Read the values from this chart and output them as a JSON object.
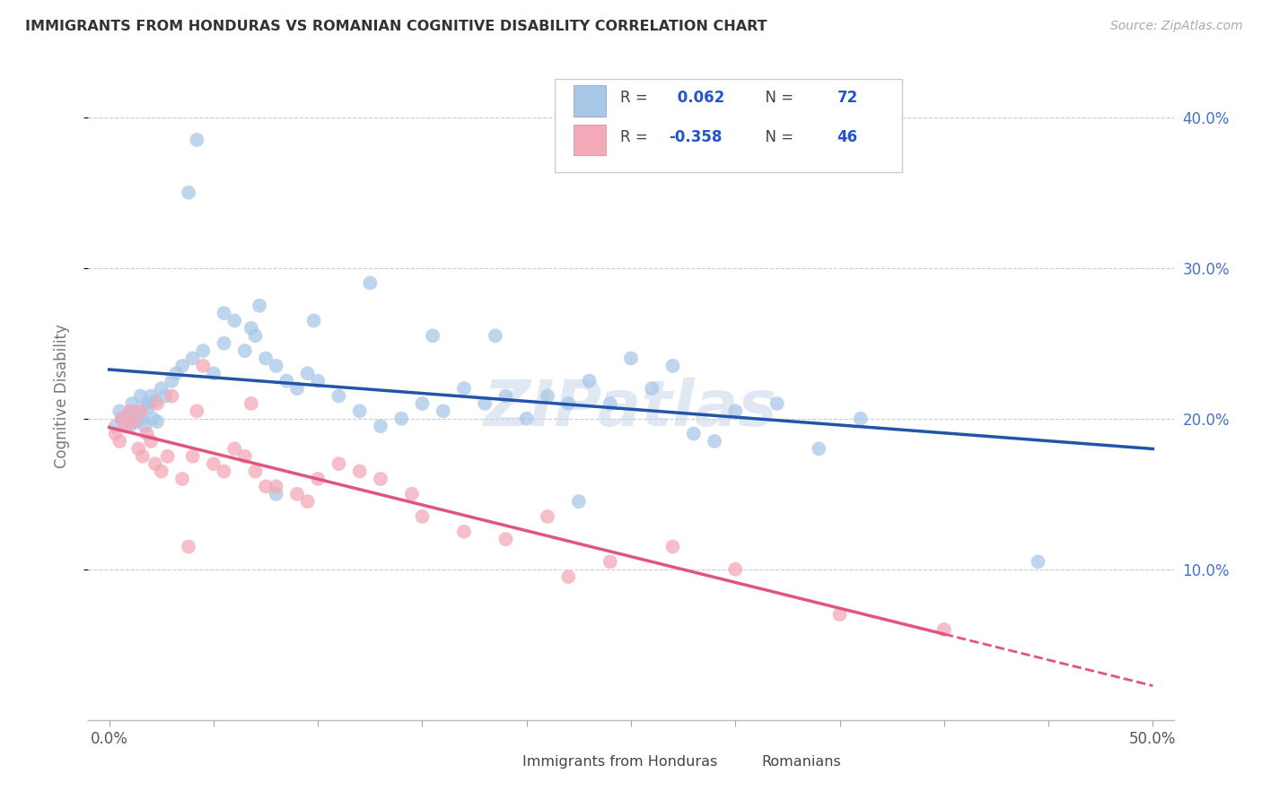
{
  "title": "IMMIGRANTS FROM HONDURAS VS ROMANIAN COGNITIVE DISABILITY CORRELATION CHART",
  "source": "Source: ZipAtlas.com",
  "ylabel": "Cognitive Disability",
  "x_tick_labels_edge": [
    "0.0%",
    "50.0%"
  ],
  "x_tick_vals": [
    0,
    5,
    10,
    15,
    20,
    25,
    30,
    35,
    40,
    45,
    50
  ],
  "x_tick_edge_vals": [
    0,
    50
  ],
  "y_tick_labels": [
    "10.0%",
    "20.0%",
    "30.0%",
    "40.0%"
  ],
  "y_tick_vals": [
    10,
    20,
    30,
    40
  ],
  "xlim": [
    -1,
    51
  ],
  "ylim": [
    0,
    43
  ],
  "blue_color": "#a8c8e8",
  "pink_color": "#f4a8b8",
  "blue_line_color": "#2255aa",
  "pink_line_color": "#e05580",
  "legend_label_bottom1": "Immigrants from Honduras",
  "legend_label_bottom2": "Romanians",
  "watermark": "ZIPatlas",
  "blue_scatter_x": [
    0.3,
    0.5,
    0.6,
    0.8,
    0.9,
    1.0,
    1.1,
    1.2,
    1.3,
    1.4,
    1.5,
    1.6,
    1.7,
    1.8,
    1.9,
    2.0,
    2.1,
    2.2,
    2.3,
    2.5,
    2.7,
    3.0,
    3.2,
    3.5,
    4.0,
    4.5,
    5.0,
    5.5,
    6.0,
    6.5,
    7.0,
    7.5,
    8.0,
    8.5,
    9.0,
    9.5,
    10.0,
    11.0,
    12.0,
    13.0,
    14.0,
    15.0,
    16.0,
    17.0,
    18.0,
    19.0,
    20.0,
    21.0,
    22.0,
    23.0,
    24.0,
    25.0,
    26.0,
    27.0,
    28.0,
    29.0,
    30.0,
    32.0,
    34.0,
    36.0,
    5.5,
    7.2,
    9.8,
    12.5,
    15.5,
    18.5,
    22.5,
    8.0,
    4.2,
    3.8,
    6.8,
    44.5
  ],
  "blue_scatter_y": [
    19.5,
    20.5,
    20.0,
    19.8,
    20.2,
    19.5,
    21.0,
    20.5,
    19.8,
    20.3,
    21.5,
    20.0,
    19.5,
    21.0,
    20.8,
    21.5,
    20.0,
    21.2,
    19.8,
    22.0,
    21.5,
    22.5,
    23.0,
    23.5,
    24.0,
    24.5,
    23.0,
    25.0,
    26.5,
    24.5,
    25.5,
    24.0,
    23.5,
    22.5,
    22.0,
    23.0,
    22.5,
    21.5,
    20.5,
    19.5,
    20.0,
    21.0,
    20.5,
    22.0,
    21.0,
    21.5,
    20.0,
    21.5,
    21.0,
    22.5,
    21.0,
    24.0,
    22.0,
    23.5,
    19.0,
    18.5,
    20.5,
    21.0,
    18.0,
    20.0,
    27.0,
    27.5,
    26.5,
    29.0,
    25.5,
    25.5,
    14.5,
    15.0,
    38.5,
    35.0,
    26.0,
    10.5
  ],
  "pink_scatter_x": [
    0.3,
    0.5,
    0.6,
    0.8,
    1.0,
    1.2,
    1.4,
    1.6,
    1.8,
    2.0,
    2.2,
    2.5,
    2.8,
    3.0,
    3.5,
    4.0,
    4.5,
    5.0,
    5.5,
    6.0,
    6.5,
    7.0,
    7.5,
    8.0,
    9.0,
    10.0,
    11.0,
    12.0,
    13.0,
    15.0,
    17.0,
    19.0,
    21.0,
    24.0,
    27.0,
    30.0,
    40.0,
    1.5,
    2.3,
    3.8,
    4.2,
    6.8,
    9.5,
    14.5,
    22.0,
    35.0
  ],
  "pink_scatter_y": [
    19.0,
    18.5,
    20.0,
    19.5,
    20.5,
    19.8,
    18.0,
    17.5,
    19.0,
    18.5,
    17.0,
    16.5,
    17.5,
    21.5,
    16.0,
    17.5,
    23.5,
    17.0,
    16.5,
    18.0,
    17.5,
    16.5,
    15.5,
    15.5,
    15.0,
    16.0,
    17.0,
    16.5,
    16.0,
    13.5,
    12.5,
    12.0,
    13.5,
    10.5,
    11.5,
    10.0,
    6.0,
    20.5,
    21.0,
    11.5,
    20.5,
    21.0,
    14.5,
    15.0,
    9.5,
    7.0
  ]
}
